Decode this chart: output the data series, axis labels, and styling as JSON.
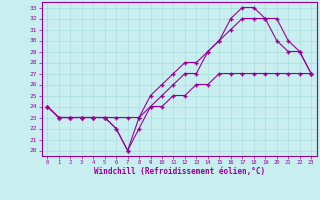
{
  "xlabel": "Windchill (Refroidissement éolien,°C)",
  "ylabel": "",
  "bg_color": "#c8eef0",
  "line_color": "#990099",
  "grid_color": "#aadddd",
  "x_ticks": [
    0,
    1,
    2,
    3,
    4,
    5,
    6,
    7,
    8,
    9,
    10,
    11,
    12,
    13,
    14,
    15,
    16,
    17,
    18,
    19,
    20,
    21,
    22,
    23
  ],
  "y_ticks": [
    20,
    21,
    22,
    23,
    24,
    25,
    26,
    27,
    28,
    29,
    30,
    31,
    32,
    33
  ],
  "xlim": [
    -0.5,
    23.5
  ],
  "ylim": [
    19.5,
    33.5
  ],
  "line1_x": [
    0,
    1,
    2,
    3,
    4,
    5,
    6,
    7,
    8,
    9,
    10,
    11,
    12,
    13,
    14,
    15,
    16,
    17,
    18,
    19,
    20,
    21,
    22,
    23
  ],
  "line1_y": [
    24,
    23,
    23,
    23,
    23,
    23,
    22,
    20,
    22,
    24,
    25,
    26,
    27,
    27,
    29,
    30,
    32,
    33,
    33,
    32,
    30,
    29,
    29,
    27
  ],
  "line2_x": [
    0,
    1,
    2,
    3,
    4,
    5,
    6,
    7,
    8,
    9,
    10,
    11,
    12,
    13,
    14,
    15,
    16,
    17,
    18,
    19,
    20,
    21,
    22,
    23
  ],
  "line2_y": [
    24,
    23,
    23,
    23,
    23,
    23,
    22,
    20,
    23,
    25,
    26,
    27,
    28,
    28,
    29,
    30,
    31,
    32,
    32,
    32,
    32,
    30,
    29,
    27
  ],
  "line3_x": [
    0,
    1,
    2,
    3,
    4,
    5,
    6,
    7,
    8,
    9,
    10,
    11,
    12,
    13,
    14,
    15,
    16,
    17,
    18,
    19,
    20,
    21,
    22,
    23
  ],
  "line3_y": [
    24,
    23,
    23,
    23,
    23,
    23,
    23,
    23,
    23,
    24,
    24,
    25,
    25,
    26,
    26,
    27,
    27,
    27,
    27,
    27,
    27,
    27,
    27,
    27
  ],
  "figsize": [
    3.2,
    2.0
  ],
  "dpi": 100
}
